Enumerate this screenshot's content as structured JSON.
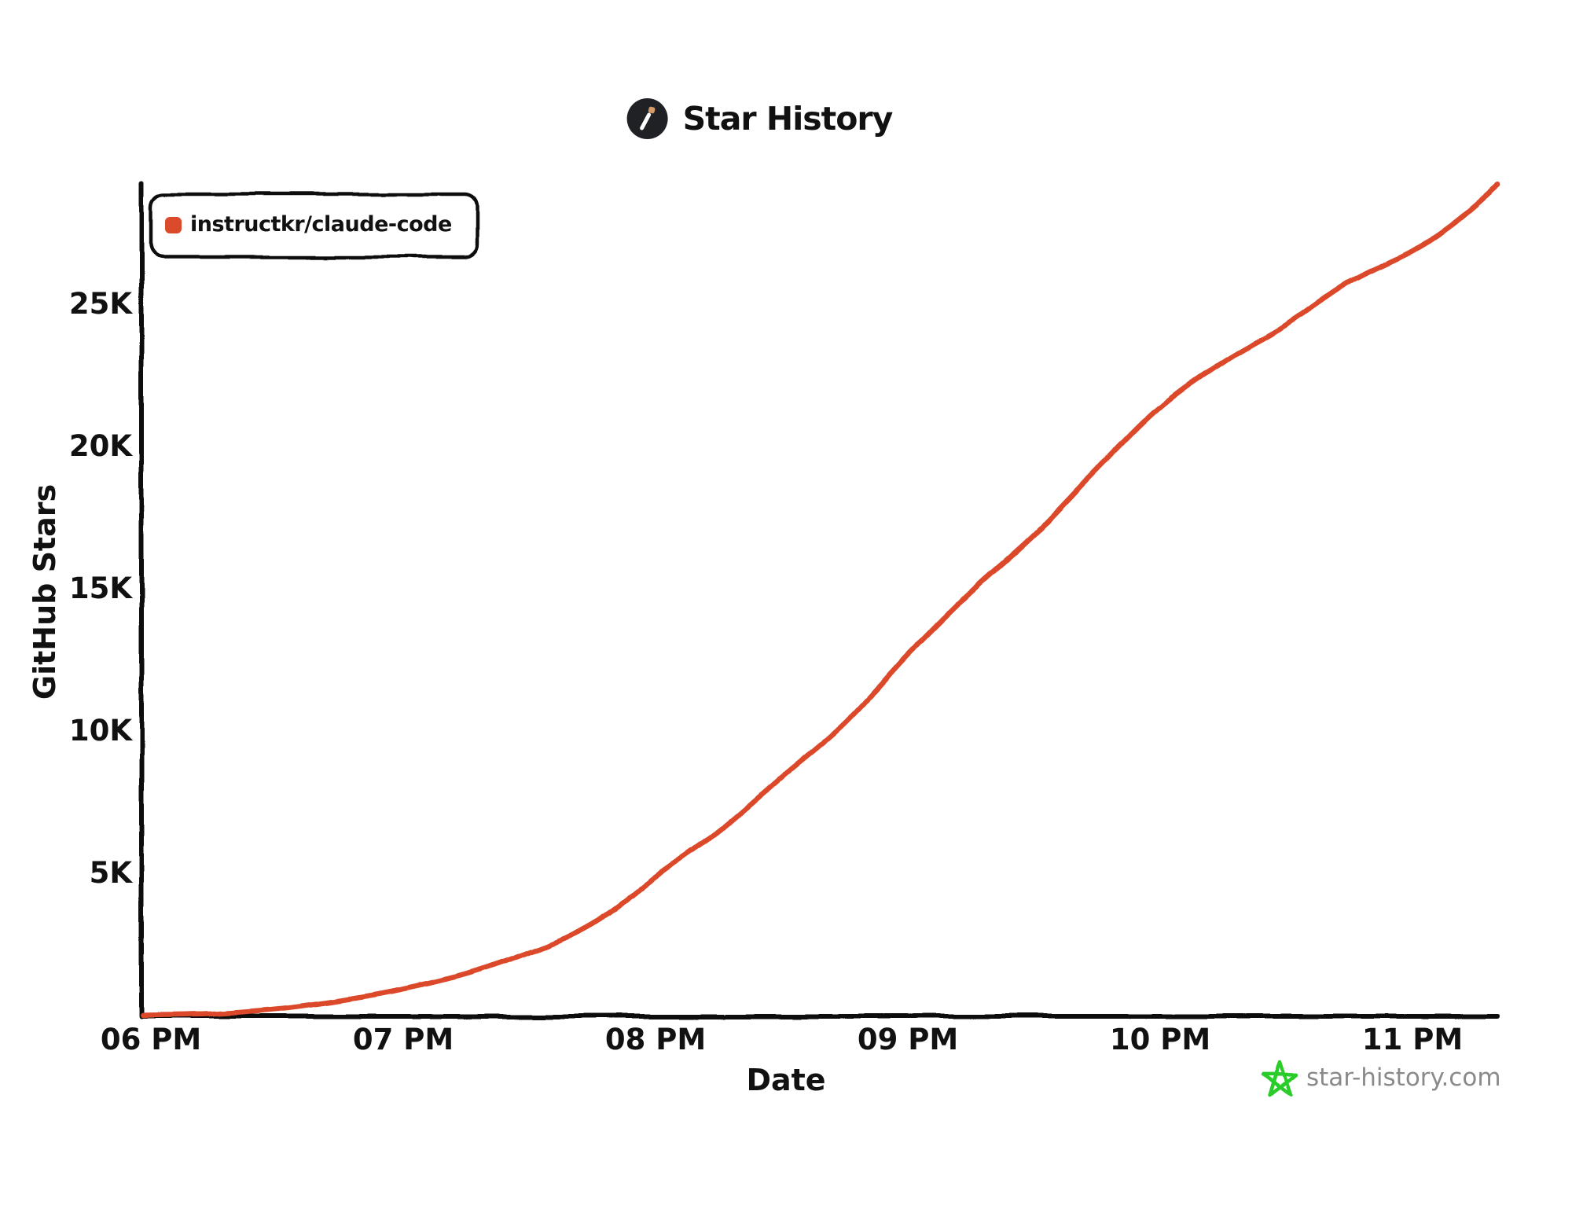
{
  "header": {
    "title": "Star History",
    "icon": "wand-icon",
    "icon_bg_color": "#202124",
    "icon_wand_color": "#ffffff",
    "icon_tip_color": "#d49a6a"
  },
  "legend": {
    "items": [
      {
        "label": "instructkr/claude-code",
        "color": "#db4a2b"
      }
    ]
  },
  "footer": {
    "site_label": "star-history.com",
    "icon": "star-doodle-icon",
    "icon_color": "#29cc29",
    "text_color": "#8a8a8a"
  },
  "chart_data": {
    "type": "line",
    "title": "Star History",
    "xlabel": "Date",
    "ylabel": "GitHub Stars",
    "grid": false,
    "legend_position": "top-left",
    "x_tick_labels": [
      "06 PM",
      "07 PM",
      "08 PM",
      "09 PM",
      "10 PM",
      "11 PM"
    ],
    "y_tick_labels": [
      "5K",
      "10K",
      "15K",
      "20K",
      "25K"
    ],
    "y_tick_values": [
      5000,
      10000,
      15000,
      20000,
      25000
    ],
    "ylim": [
      0,
      29300
    ],
    "xlim_hours": [
      18.0,
      23.37
    ],
    "axis_color": "#111111",
    "series": [
      {
        "name": "instructkr/claude-code",
        "color": "#db4a2b",
        "x_hours": [
          18.0,
          18.25,
          18.5,
          18.75,
          19.0,
          19.25,
          19.5,
          19.75,
          20.0,
          20.25,
          20.5,
          20.75,
          21.0,
          21.25,
          21.5,
          21.75,
          22.0,
          22.25,
          22.5,
          22.75,
          23.0,
          23.17,
          23.34
        ],
        "stars": [
          30,
          80,
          250,
          550,
          950,
          1500,
          2250,
          3250,
          4900,
          6500,
          8400,
          10300,
          12700,
          14900,
          16900,
          19200,
          21400,
          23000,
          24300,
          25800,
          26900,
          27900,
          29200
        ]
      }
    ]
  }
}
